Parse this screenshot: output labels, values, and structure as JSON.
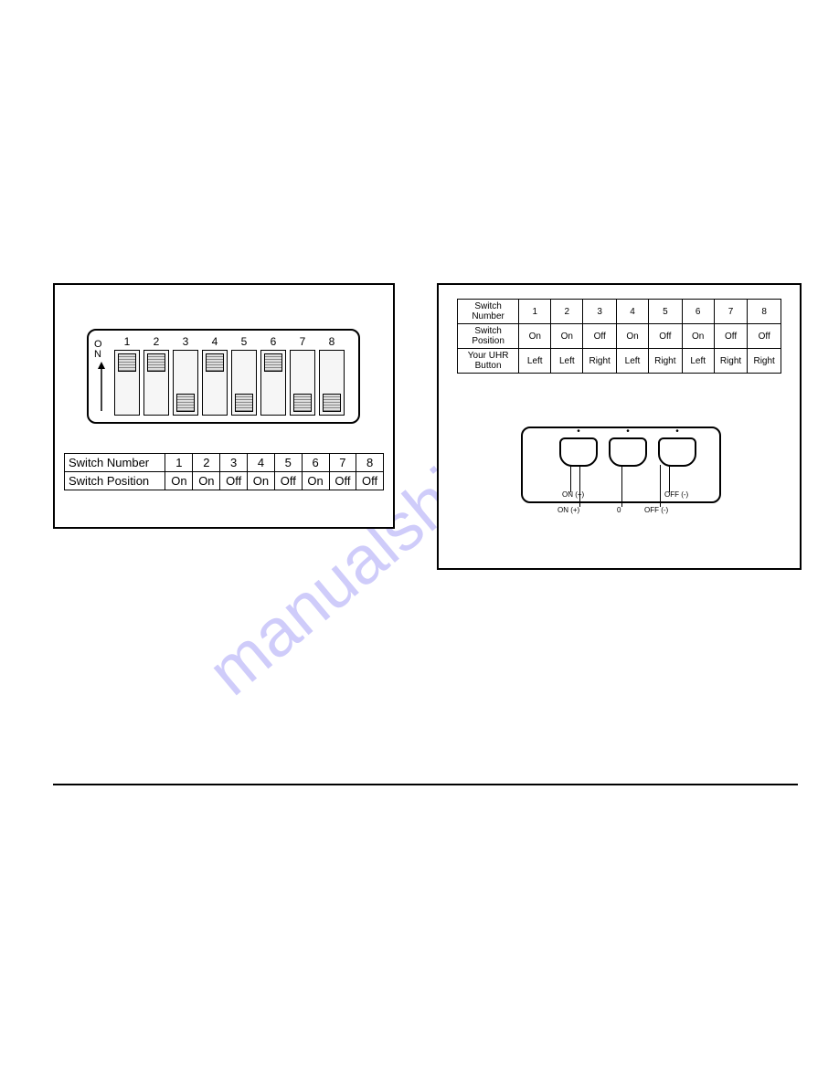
{
  "watermark": "manualshive.com",
  "left_panel": {
    "on_label_top": "O",
    "on_label_bottom": "N",
    "switches": [
      {
        "num": "1",
        "pos": "on"
      },
      {
        "num": "2",
        "pos": "on"
      },
      {
        "num": "3",
        "pos": "off"
      },
      {
        "num": "4",
        "pos": "on"
      },
      {
        "num": "5",
        "pos": "off"
      },
      {
        "num": "6",
        "pos": "on"
      },
      {
        "num": "7",
        "pos": "off"
      },
      {
        "num": "8",
        "pos": "off"
      }
    ],
    "row1_label": "Switch Number",
    "row2_label": "Switch Position",
    "row1": [
      "1",
      "2",
      "3",
      "4",
      "5",
      "6",
      "7",
      "8"
    ],
    "row2": [
      "On",
      "On",
      "Off",
      "On",
      "Off",
      "On",
      "Off",
      "Off"
    ]
  },
  "right_panel": {
    "headers": [
      "Switch\nNumber",
      "Switch\nPosition",
      "Your UHR\nButton"
    ],
    "cols": [
      "1",
      "2",
      "3",
      "4",
      "5",
      "6",
      "7",
      "8"
    ],
    "positions": [
      "On",
      "On",
      "Off",
      "On",
      "Off",
      "On",
      "Off",
      "Off"
    ],
    "uhr": [
      "Left",
      "Left",
      "Right",
      "Left",
      "Right",
      "Left",
      "Right",
      "Right"
    ],
    "lead_labels": {
      "on1": "ON (+)",
      "on2": "ON (+)",
      "zero": "0",
      "off1": "OFF (-)",
      "off2": "OFF (-)"
    }
  }
}
